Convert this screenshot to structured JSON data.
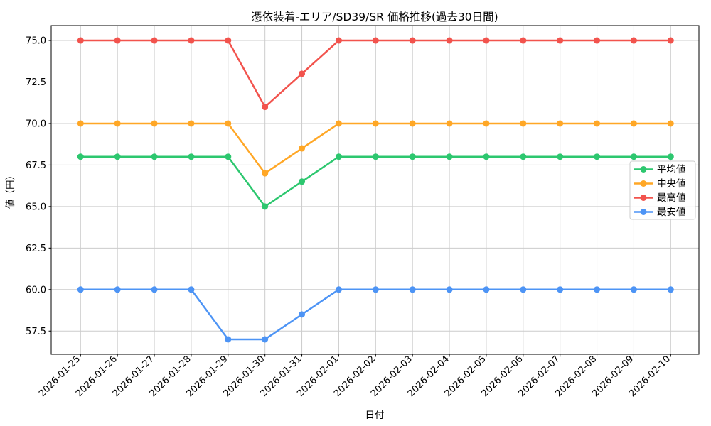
{
  "chart_data": {
    "type": "line",
    "title": "憑依装着-エリア/SD39/SR 価格推移(過去30日間)",
    "xlabel": "日付",
    "ylabel": "値（円）",
    "x": [
      "2026-01-25",
      "2026-01-26",
      "2026-01-27",
      "2026-01-28",
      "2026-01-29",
      "2026-01-30",
      "2026-01-31",
      "2026-02-01",
      "2026-02-02",
      "2026-02-03",
      "2026-02-04",
      "2026-02-05",
      "2026-02-06",
      "2026-02-07",
      "2026-02-08",
      "2026-02-09",
      "2026-02-10"
    ],
    "series": [
      {
        "name": "平均値",
        "color": "#2dc76f",
        "values": [
          68,
          68,
          68,
          68,
          68,
          65,
          66.5,
          68,
          68,
          68,
          68,
          68,
          68,
          68,
          68,
          68,
          68
        ]
      },
      {
        "name": "中央値",
        "color": "#ffa726",
        "values": [
          70,
          70,
          70,
          70,
          70,
          67,
          68.5,
          70,
          70,
          70,
          70,
          70,
          70,
          70,
          70,
          70,
          70
        ]
      },
      {
        "name": "最高値",
        "color": "#f2534d",
        "values": [
          75,
          75,
          75,
          75,
          75,
          71,
          73,
          75,
          75,
          75,
          75,
          75,
          75,
          75,
          75,
          75,
          75
        ]
      },
      {
        "name": "最安値",
        "color": "#4d94f5",
        "values": [
          60,
          60,
          60,
          60,
          57,
          57,
          58.5,
          60,
          60,
          60,
          60,
          60,
          60,
          60,
          60,
          60,
          60
        ]
      }
    ],
    "ylim": [
      56.1,
      75.9
    ],
    "yticks": [
      57.5,
      60.0,
      62.5,
      65.0,
      67.5,
      70.0,
      72.5,
      75.0
    ],
    "grid": true,
    "grid_color": "#cccccc",
    "background": "#ffffff",
    "legend_position": "right-center",
    "x_tick_rotation": 45
  }
}
